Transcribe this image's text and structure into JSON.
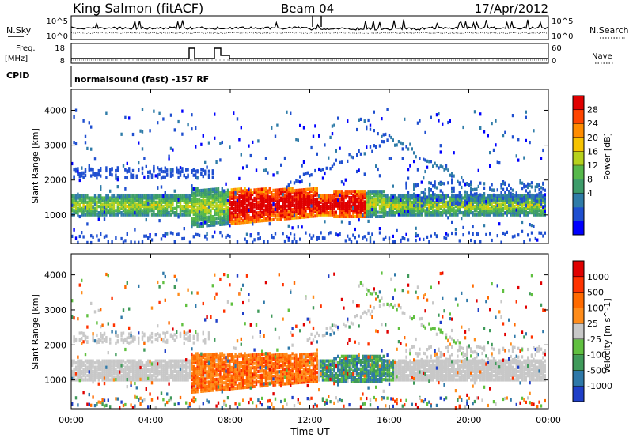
{
  "header": {
    "title": "King Salmon (fitACF)",
    "beam": "Beam 04",
    "date": "17/Apr/2012"
  },
  "panels": {
    "nsky": {
      "label": "N.Sky",
      "right_label": "N.Search",
      "ticks_left": [
        "10^5",
        "10^0"
      ],
      "ticks_right": [
        "10^5",
        "10^0"
      ]
    },
    "freq": {
      "label_line1": "Freq.",
      "label_line2": "[MHz]",
      "ticks_left": [
        "18",
        "8"
      ],
      "right_label": "Nave",
      "ticks_right": [
        "60",
        "0"
      ]
    },
    "cpid": {
      "label": "CPID",
      "text": "normalsound (fast) -157 RF"
    }
  },
  "chart_data": [
    {
      "type": "heatmap",
      "ylabel": "Slant Range [km]",
      "yticks": [
        "4000",
        "3000",
        "2000",
        "1000"
      ],
      "ylim": [
        180,
        4600
      ],
      "colorbar_label": "Power [dB]",
      "colorbar_ticks": [
        "28",
        "24",
        "20",
        "16",
        "12",
        "8",
        "4"
      ],
      "colorbar_colors": [
        "#0000ff",
        "#1f4fd0",
        "#2f7ca8",
        "#3d9c6a",
        "#56b84a",
        "#b6d11c",
        "#f6c300",
        "#ff8c00",
        "#ff4500",
        "#e00000"
      ]
    },
    {
      "type": "heatmap",
      "ylabel": "Slant Range [km]",
      "yticks": [
        "4000",
        "3000",
        "2000",
        "1000"
      ],
      "ylim": [
        180,
        4600
      ],
      "colorbar_label": "Velocity [m s^-1]",
      "colorbar_ticks": [
        "1000",
        "500",
        "100",
        "25",
        "-25",
        "-100",
        "-500",
        "-1000"
      ],
      "colorbar_colors": [
        "#1f3fc8",
        "#2e78a8",
        "#3f9a5a",
        "#60c040",
        "#c8c8c8",
        "#ff8c1a",
        "#ff6a00",
        "#ff3300",
        "#e00000"
      ]
    }
  ],
  "xaxis": {
    "label": "Time UT",
    "ticks": [
      "00:00",
      "04:00",
      "08:00",
      "12:00",
      "16:00",
      "20:00",
      "00:00"
    ]
  }
}
